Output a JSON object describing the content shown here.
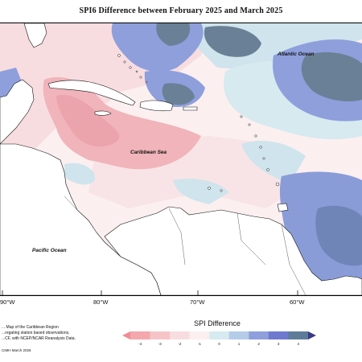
{
  "title": "SPI6 Difference between February 2025 and March 2025",
  "labels": {
    "atlantic": "Atlantic Ocean",
    "caribbean": "Caribbean Sea",
    "pacific": "Pacific Ocean"
  },
  "longitudes": [
    "90°W",
    "80°W",
    "70°W",
    "60°W"
  ],
  "footnote": {
    "line1": "... Map of the Caribbean Region",
    "line2": "...regating station based observations,",
    "line3": "...CF, with NCEP/NCAR Reanalysis Data."
  },
  "credit": "CIMH March 2025",
  "legend": {
    "title": "SPI Difference",
    "ticks": [
      "-4",
      "-3",
      "-2",
      "-1",
      "0",
      "1",
      "2",
      "3",
      "4"
    ],
    "colors": [
      "#f08c94",
      "#f4a8ae",
      "#f6c4c8",
      "#f8dde0",
      "#fbeff0",
      "#d6eaf0",
      "#b4cce8",
      "#8e9fdc",
      "#6e7ad0",
      "#5e7c9a",
      "#3a3a86"
    ]
  },
  "palette": {
    "land": "#ffffff",
    "coast": "#111111",
    "neutral_ocean": "#fbeff0",
    "pink_light": "#f8dde0",
    "pink_mid": "#f4c4c8",
    "pink_strong": "#f0a8b0",
    "blue_light": "#cfe4ec",
    "blue_mid": "#8e9fdc",
    "blue_dark": "#6f85b8",
    "slate": "#6a8096"
  }
}
